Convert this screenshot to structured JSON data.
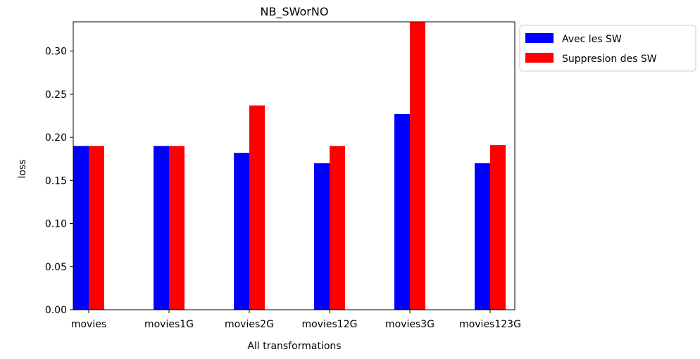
{
  "chart_data": {
    "type": "bar",
    "title": "NB_SWorNO",
    "xlabel": "All transformations",
    "ylabel": "loss",
    "categories": [
      "movies",
      "movies1G",
      "movies2G",
      "movies12G",
      "movies3G",
      "movies123G"
    ],
    "series": [
      {
        "name": "Avec les SW",
        "color": "#0000ff",
        "values": [
          0.19,
          0.19,
          0.182,
          0.17,
          0.227,
          0.17
        ]
      },
      {
        "name": "Suppresion des SW",
        "color": "#ff0000",
        "values": [
          0.19,
          0.19,
          0.237,
          0.19,
          0.334,
          0.191
        ]
      }
    ],
    "ylim": [
      0,
      0.334
    ],
    "yticks": [
      "0.00",
      "0.05",
      "0.10",
      "0.15",
      "0.20",
      "0.25",
      "0.30"
    ],
    "grid": false,
    "legend_position": "outside-right-top"
  }
}
